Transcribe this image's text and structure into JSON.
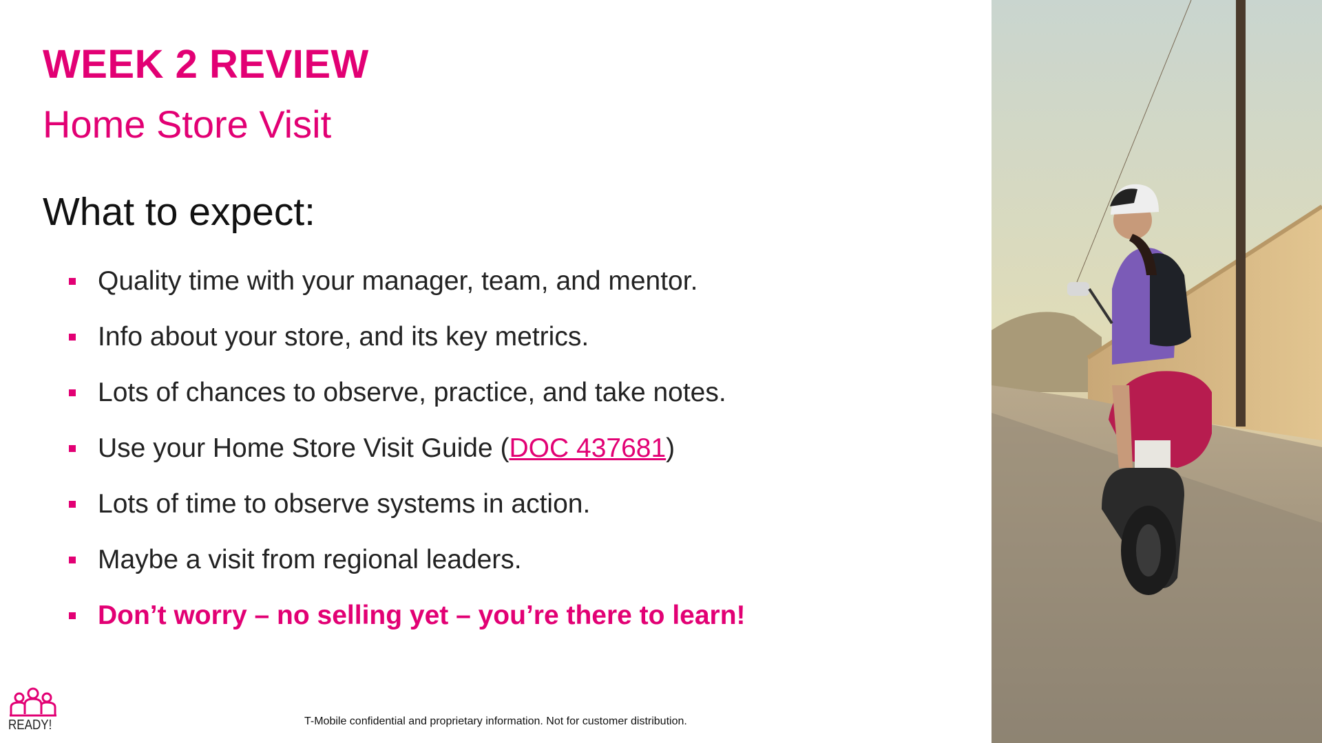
{
  "slide": {
    "title": "WEEK 2 REVIEW",
    "subtitle": "Home Store Visit",
    "heading": "What to expect:",
    "bullets": [
      "Quality time with your manager, team, and mentor.",
      "Info about your store, and its key metrics.",
      "Lots of chances to observe, practice, and take notes.",
      "Use your Home Store Visit Guide (",
      "Lots of time to observe systems in action.",
      "Maybe a visit from regional leaders.",
      "Don’t worry – no selling yet – you’re there to learn!"
    ],
    "doc_link": "DOC 437681",
    "doc_close": ")",
    "footer": "T-Mobile confidential and proprietary information. Not for customer distribution.",
    "logo_text": "READY!"
  },
  "colors": {
    "accent": "#e20074",
    "text": "#222222"
  },
  "icons": {
    "logo": "ready-people-icon",
    "bullet": "square-bullet-icon",
    "photo": "scooter-rider-photo"
  }
}
